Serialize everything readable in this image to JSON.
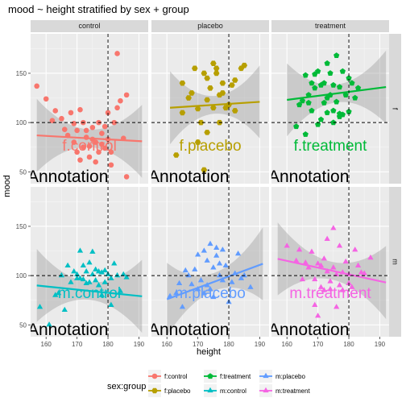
{
  "chart_data": {
    "type": "scatter",
    "title": "mood ~ height stratified by sex + group",
    "xlabel": "height",
    "ylabel": "mood",
    "xlim": [
      155,
      193
    ],
    "ylim": [
      38,
      190
    ],
    "x_ticks": [
      160,
      170,
      180,
      190
    ],
    "y_ticks": [
      50,
      100,
      150
    ],
    "grid": true,
    "legend_title": "sex:group",
    "legend_position": "bottom",
    "columns": [
      "control",
      "placebo",
      "treatment"
    ],
    "rows": [
      "f",
      "m"
    ],
    "annotation_text": "Annotation",
    "ref_vline_x": 180,
    "ref_hline_y": 100,
    "panels": [
      {
        "row": "f",
        "col": "control",
        "series": "f:control",
        "label": "f.control",
        "color": "#F8766D",
        "shape": "circle",
        "trend": {
          "x": [
            157,
            191
          ],
          "y": [
            87,
            81
          ]
        },
        "points": [
          [
            157,
            137
          ],
          [
            160,
            124
          ],
          [
            162,
            102
          ],
          [
            163,
            112
          ],
          [
            165,
            104
          ],
          [
            166,
            93
          ],
          [
            167,
            87
          ],
          [
            168,
            110
          ],
          [
            169,
            99
          ],
          [
            169,
            80
          ],
          [
            170,
            92
          ],
          [
            170,
            70
          ],
          [
            171,
            113
          ],
          [
            171,
            62
          ],
          [
            172,
            75
          ],
          [
            172,
            100
          ],
          [
            173,
            85
          ],
          [
            173,
            92
          ],
          [
            174,
            65
          ],
          [
            174,
            76
          ],
          [
            175,
            95
          ],
          [
            175,
            83
          ],
          [
            176,
            80
          ],
          [
            176,
            60
          ],
          [
            177,
            100
          ],
          [
            177,
            70
          ],
          [
            178,
            89
          ],
          [
            178,
            78
          ],
          [
            179,
            74
          ],
          [
            179,
            96
          ],
          [
            180,
            83
          ],
          [
            180,
            110
          ],
          [
            181,
            57
          ],
          [
            181,
            70
          ],
          [
            182,
            100
          ],
          [
            183,
            170
          ],
          [
            183,
            115
          ],
          [
            184,
            122
          ],
          [
            185,
            84
          ],
          [
            186,
            45
          ],
          [
            186,
            128
          ]
        ]
      },
      {
        "row": "f",
        "col": "placebo",
        "series": "f:placebo",
        "label": "f.placebo",
        "color": "#B79F00",
        "shape": "hexagon",
        "trend": {
          "x": [
            161,
            190
          ],
          "y": [
            115,
            121
          ]
        },
        "points": [
          [
            163,
            67
          ],
          [
            165,
            110
          ],
          [
            165,
            140
          ],
          [
            167,
            125
          ],
          [
            168,
            130
          ],
          [
            169,
            155
          ],
          [
            170,
            114
          ],
          [
            170,
            80
          ],
          [
            171,
            100
          ],
          [
            172,
            150
          ],
          [
            172,
            52
          ],
          [
            173,
            123
          ],
          [
            173,
            90
          ],
          [
            173,
            145
          ],
          [
            174,
            135
          ],
          [
            175,
            115
          ],
          [
            175,
            160
          ],
          [
            176,
            155
          ],
          [
            176,
            150
          ],
          [
            177,
            128
          ],
          [
            177,
            100
          ],
          [
            178,
            130
          ],
          [
            178,
            140
          ],
          [
            179,
            115
          ],
          [
            180,
            118
          ],
          [
            181,
            138
          ],
          [
            182,
            112
          ],
          [
            182,
            143
          ],
          [
            184,
            155
          ],
          [
            185,
            158
          ]
        ]
      },
      {
        "row": "f",
        "col": "treatment",
        "series": "f:treatment",
        "label": "f.treatment",
        "color": "#00BA38",
        "shape": "pentagon",
        "trend": {
          "x": [
            160,
            192
          ],
          "y": [
            123,
            136
          ]
        },
        "points": [
          [
            163,
            96
          ],
          [
            164,
            118
          ],
          [
            165,
            122
          ],
          [
            166,
            148
          ],
          [
            166,
            88
          ],
          [
            167,
            120
          ],
          [
            167,
            128
          ],
          [
            168,
            140
          ],
          [
            168,
            112
          ],
          [
            169,
            149
          ],
          [
            169,
            135
          ],
          [
            170,
            152
          ],
          [
            170,
            98
          ],
          [
            171,
            138
          ],
          [
            171,
            103
          ],
          [
            172,
            140
          ],
          [
            172,
            120
          ],
          [
            173,
            160
          ],
          [
            173,
            110
          ],
          [
            173,
            125
          ],
          [
            174,
            128
          ],
          [
            174,
            150
          ],
          [
            175,
            112
          ],
          [
            175,
            138
          ],
          [
            175,
            100
          ],
          [
            176,
            121
          ],
          [
            176,
            168
          ],
          [
            177,
            136
          ],
          [
            177,
            106
          ],
          [
            177,
            109
          ],
          [
            178,
            152
          ],
          [
            178,
            108
          ],
          [
            179,
            128
          ],
          [
            180,
            145
          ],
          [
            180,
            111
          ],
          [
            181,
            140
          ],
          [
            182,
            125
          ],
          [
            183,
            135
          ]
        ]
      },
      {
        "row": "m",
        "col": "control",
        "series": "m:control",
        "label": "m.control",
        "color": "#00BFC4",
        "shape": "triangle",
        "trend": {
          "x": [
            157,
            191
          ],
          "y": [
            90,
            79
          ]
        },
        "points": [
          [
            158,
            68
          ],
          [
            161,
            50
          ],
          [
            163,
            80
          ],
          [
            164,
            82
          ],
          [
            165,
            100
          ],
          [
            166,
            65
          ],
          [
            167,
            110
          ],
          [
            168,
            93
          ],
          [
            169,
            104
          ],
          [
            170,
            101
          ],
          [
            170,
            97
          ],
          [
            171,
            97
          ],
          [
            171,
            125
          ],
          [
            172,
            96
          ],
          [
            172,
            110
          ],
          [
            173,
            92
          ],
          [
            173,
            104
          ],
          [
            174,
            113
          ],
          [
            174,
            93
          ],
          [
            175,
            101
          ],
          [
            175,
            124
          ],
          [
            176,
            95
          ],
          [
            176,
            106
          ],
          [
            177,
            104
          ],
          [
            177,
            90
          ],
          [
            178,
            103
          ],
          [
            178,
            80
          ],
          [
            179,
            93
          ],
          [
            179,
            105
          ],
          [
            180,
            101
          ],
          [
            181,
            97
          ],
          [
            181,
            70
          ],
          [
            182,
            112
          ],
          [
            183,
            100
          ],
          [
            184,
            84
          ],
          [
            185,
            101
          ],
          [
            186,
            98
          ]
        ]
      },
      {
        "row": "m",
        "col": "placebo",
        "series": "m:placebo",
        "label": "m:placebo",
        "color": "#619CFF",
        "shape": "triangle",
        "trend": {
          "x": [
            160,
            191
          ],
          "y": [
            76,
            112
          ]
        },
        "points": [
          [
            161,
            79
          ],
          [
            163,
            82
          ],
          [
            164,
            92
          ],
          [
            165,
            68
          ],
          [
            166,
            105
          ],
          [
            167,
            100
          ],
          [
            168,
            91
          ],
          [
            169,
            106
          ],
          [
            170,
            121
          ],
          [
            170,
            86
          ],
          [
            171,
            95
          ],
          [
            172,
            125
          ],
          [
            172,
            82
          ],
          [
            173,
            115
          ],
          [
            173,
            90
          ],
          [
            174,
            132
          ],
          [
            174,
            86
          ],
          [
            175,
            108
          ],
          [
            175,
            78
          ],
          [
            176,
            120
          ],
          [
            176,
            128
          ],
          [
            177,
            112
          ],
          [
            177,
            100
          ],
          [
            178,
            95
          ],
          [
            178,
            126
          ],
          [
            179,
            110
          ],
          [
            180,
            73
          ],
          [
            181,
            93
          ],
          [
            182,
            102
          ],
          [
            183,
            122
          ],
          [
            184,
            97
          ],
          [
            185,
            100
          ],
          [
            187,
            88
          ]
        ]
      },
      {
        "row": "m",
        "col": "treatment",
        "series": "m:treatment",
        "label": "m.treatment",
        "color": "#F564E3",
        "shape": "triangle",
        "trend": {
          "x": [
            157,
            192
          ],
          "y": [
            117,
            93
          ]
        },
        "points": [
          [
            160,
            130
          ],
          [
            163,
            115
          ],
          [
            164,
            126
          ],
          [
            165,
            96
          ],
          [
            166,
            113
          ],
          [
            167,
            108
          ],
          [
            168,
            124
          ],
          [
            169,
            96
          ],
          [
            169,
            70
          ],
          [
            170,
            112
          ],
          [
            170,
            59
          ],
          [
            171,
            110
          ],
          [
            171,
            88
          ],
          [
            172,
            85
          ],
          [
            172,
            117
          ],
          [
            173,
            137
          ],
          [
            173,
            104
          ],
          [
            174,
            86
          ],
          [
            174,
            94
          ],
          [
            175,
            148
          ],
          [
            175,
            108
          ],
          [
            176,
            101
          ],
          [
            176,
            68
          ],
          [
            177,
            90
          ],
          [
            177,
            130
          ],
          [
            178,
            103
          ],
          [
            178,
            85
          ],
          [
            179,
            114
          ],
          [
            180,
            101
          ],
          [
            180,
            92
          ],
          [
            181,
            88
          ],
          [
            182,
            126
          ],
          [
            183,
            110
          ],
          [
            184,
            103
          ],
          [
            185,
            102
          ],
          [
            187,
            118
          ]
        ]
      }
    ],
    "legend": [
      {
        "label": "f:control",
        "color": "#F8766D",
        "shape": "circle"
      },
      {
        "label": "f:placebo",
        "color": "#B79F00",
        "shape": "hexagon"
      },
      {
        "label": "f:treatment",
        "color": "#00BA38",
        "shape": "pentagon"
      },
      {
        "label": "m:control",
        "color": "#00BFC4",
        "shape": "triangle"
      },
      {
        "label": "m:placebo",
        "color": "#619CFF",
        "shape": "triangle"
      },
      {
        "label": "m:treatment",
        "color": "#F564E3",
        "shape": "triangle"
      }
    ]
  }
}
